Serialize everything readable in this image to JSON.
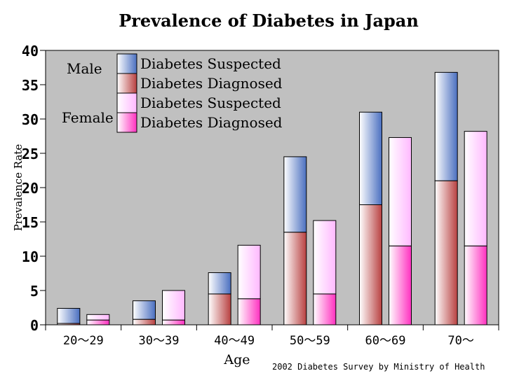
{
  "chart_data": {
    "type": "bar",
    "title": "Prevalence of Diabetes in Japan",
    "xlabel": "Age",
    "ylabel": "Prevalence Rate",
    "ylim": [
      0,
      40
    ],
    "yticks": [
      0,
      5,
      10,
      15,
      20,
      25,
      30,
      35,
      40
    ],
    "categories": [
      "20～29",
      "30～39",
      "40～49",
      "50～59",
      "60～69",
      "70～"
    ],
    "stacked": true,
    "grid": false,
    "background_color": "#c0c0c0",
    "groups": [
      {
        "name": "Male",
        "series": [
          {
            "name": "Diabetes Diagnosed",
            "color": "#c05050",
            "values": [
              0.2,
              0.8,
              4.5,
              13.5,
              17.5,
              21.0
            ]
          },
          {
            "name": "Diabetes Suspected",
            "color": "#5b7ec8",
            "values": [
              2.2,
              2.7,
              3.1,
              11.0,
              13.5,
              15.8
            ]
          }
        ]
      },
      {
        "name": "Female",
        "series": [
          {
            "name": "Diabetes Diagnosed",
            "color": "#ff3cc8",
            "values": [
              0.7,
              0.7,
              3.8,
              4.5,
              11.5,
              11.5
            ]
          },
          {
            "name": "Diabetes Suspected",
            "color": "#ffd0ff",
            "values": [
              0.8,
              4.3,
              7.8,
              10.7,
              15.8,
              16.7
            ]
          }
        ]
      }
    ],
    "legend": {
      "position": "top-left",
      "group_labels": [
        "Male",
        "Female"
      ],
      "entries": [
        "Diabetes Suspected",
        "Diabetes Diagnosed",
        "Diabetes Suspected",
        "Diabetes Diagnosed"
      ]
    },
    "source_note": "2002 Diabetes Survey by Ministry of Health"
  }
}
